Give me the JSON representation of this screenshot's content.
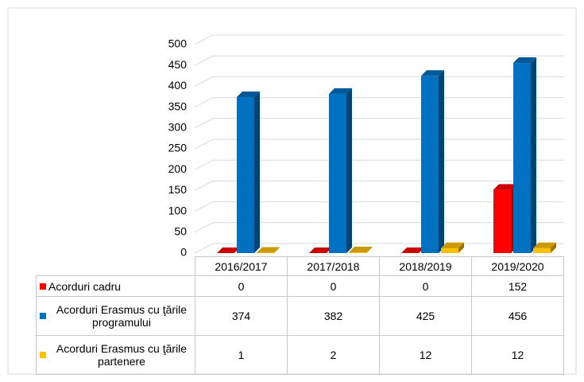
{
  "chart_data": {
    "type": "bar3d",
    "categories": [
      "2016/2017",
      "2017/2018",
      "2018/2019",
      "2019/2020"
    ],
    "series": [
      {
        "name": "Acorduri cadru",
        "color": "#ff0000",
        "values": [
          0,
          0,
          0,
          152
        ]
      },
      {
        "name": "Acorduri Erasmus cu ţările programului",
        "color": "#0070c0",
        "values": [
          374,
          382,
          425,
          456
        ]
      },
      {
        "name": "Acorduri Erasmus cu ţările partenere",
        "color": "#ffc000",
        "values": [
          1,
          2,
          12,
          12
        ]
      }
    ],
    "ylim": [
      0,
      500
    ],
    "yticks": [
      0,
      50,
      100,
      150,
      200,
      250,
      300,
      350,
      400,
      450,
      500
    ],
    "grid": true
  }
}
